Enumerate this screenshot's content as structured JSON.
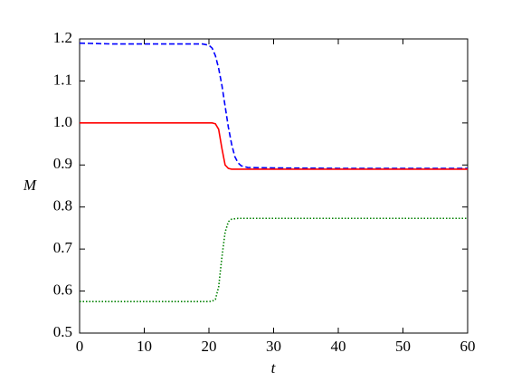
{
  "chart_data": {
    "type": "line",
    "xlabel": "t",
    "ylabel": "M",
    "x": [
      0,
      5,
      10,
      15,
      19,
      20,
      20.5,
      21,
      21.5,
      22,
      22.5,
      23,
      23.5,
      24,
      24.5,
      25,
      26,
      30,
      40,
      50,
      60
    ],
    "series": [
      {
        "color": "#0000ff",
        "linestyle": "dashed",
        "values": [
          1.19,
          1.188,
          1.188,
          1.188,
          1.188,
          1.185,
          1.178,
          1.16,
          1.13,
          1.09,
          1.04,
          0.99,
          0.95,
          0.92,
          0.905,
          0.898,
          0.894,
          0.893,
          0.892,
          0.892,
          0.892
        ]
      },
      {
        "color": "#ff0000",
        "linestyle": "solid",
        "values": [
          1.0,
          1.0,
          1.0,
          1.0,
          1.0,
          1.0,
          1.0,
          0.998,
          0.985,
          0.94,
          0.9,
          0.892,
          0.89,
          0.89,
          0.89,
          0.89,
          0.89,
          0.89,
          0.89,
          0.89,
          0.89
        ]
      },
      {
        "color": "#008000",
        "linestyle": "dotted",
        "values": [
          0.575,
          0.575,
          0.575,
          0.575,
          0.575,
          0.575,
          0.576,
          0.58,
          0.61,
          0.68,
          0.74,
          0.765,
          0.771,
          0.772,
          0.773,
          0.773,
          0.773,
          0.773,
          0.773,
          0.773,
          0.773
        ]
      }
    ],
    "xlim": [
      0,
      60
    ],
    "xticks": [
      0,
      10,
      20,
      30,
      40,
      50,
      60
    ],
    "ylim": [
      0.5,
      1.2
    ],
    "yticks": [
      0.5,
      0.6,
      0.7,
      0.8,
      0.9,
      {
        "value": 1.0,
        "label": "1.0"
      },
      1.1,
      1.2
    ],
    "grid": false
  }
}
